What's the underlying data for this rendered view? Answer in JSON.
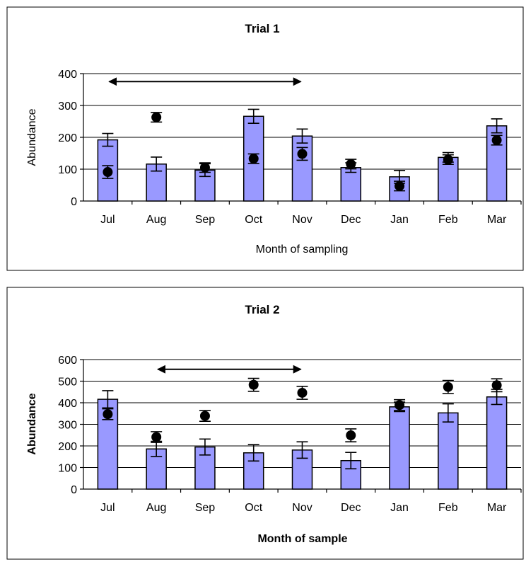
{
  "colors": {
    "bar": "#9999FF",
    "dot": "#000000",
    "frame": "#000000"
  },
  "chart_data": [
    {
      "type": "bar",
      "title": "Trial 1",
      "xlabel": "Month of sampling",
      "ylabel": "Abundance",
      "ylim": [
        0,
        400
      ],
      "yticks": [
        "0",
        "100",
        "200",
        "300",
        "400"
      ],
      "grid": true,
      "categories": [
        "Jul",
        "Aug",
        "Sep",
        "Oct",
        "Nov",
        "Dec",
        "Jan",
        "Feb",
        "Mar"
      ],
      "series": [
        {
          "kind": "bar",
          "values": [
            192,
            116,
            97,
            266,
            204,
            105,
            76,
            137,
            236
          ],
          "errors": [
            20,
            22,
            20,
            22,
            22,
            15,
            20,
            15,
            22
          ]
        },
        {
          "kind": "point",
          "values": [
            91,
            263,
            105,
            133,
            148,
            116,
            47,
            130,
            191
          ],
          "errors": [
            20,
            15,
            15,
            15,
            20,
            15,
            15,
            15,
            15
          ]
        }
      ],
      "annotation_arrow": {
        "from": "Jul",
        "to": "Nov",
        "double_headed": true,
        "y": 375
      }
    },
    {
      "type": "bar",
      "title": "Trial 2",
      "xlabel": "Month of sample",
      "ylabel": "Abundance",
      "ylim": [
        0,
        600
      ],
      "yticks": [
        "0",
        "100",
        "200",
        "300",
        "400",
        "500",
        "600"
      ],
      "grid": true,
      "categories": [
        "Jul",
        "Aug",
        "Sep",
        "Oct",
        "Nov",
        "Dec",
        "Jan",
        "Feb",
        "Mar"
      ],
      "series": [
        {
          "kind": "bar",
          "values": [
            416,
            186,
            195,
            168,
            181,
            132,
            381,
            353,
            427
          ],
          "errors": [
            40,
            35,
            37,
            38,
            38,
            38,
            22,
            42,
            35
          ]
        },
        {
          "kind": "point",
          "values": [
            347,
            241,
            339,
            483,
            446,
            249,
            389,
            473,
            481
          ],
          "errors": [
            25,
            25,
            25,
            30,
            30,
            30,
            25,
            30,
            30
          ]
        }
      ],
      "annotation_arrow": {
        "from": "Aug",
        "to": "Nov",
        "double_headed": true,
        "y": 555
      }
    }
  ]
}
